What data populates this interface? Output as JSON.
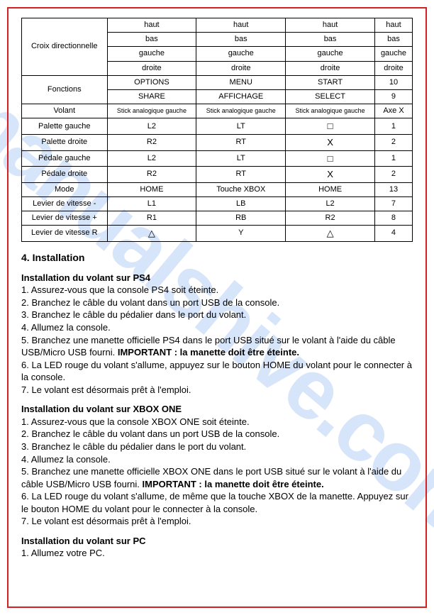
{
  "watermark": "manualshive.com",
  "table": {
    "row_labels": [
      "Croix directionnelle",
      "Fonctions",
      "Volant",
      "Palette gauche",
      "Palette droite",
      "Pédale gauche",
      "Pédale droite",
      "Mode",
      "Levier de vitesse -",
      "Levier de vitesse +",
      "Levier de vitesse R"
    ],
    "croix": {
      "r1": [
        "haut",
        "haut",
        "haut",
        "haut"
      ],
      "r2": [
        "bas",
        "bas",
        "bas",
        "bas"
      ],
      "r3": [
        "gauche",
        "gauche",
        "gauche",
        "gauche"
      ],
      "r4": [
        "droite",
        "droite",
        "droite",
        "droite"
      ]
    },
    "fonctions": {
      "r1": [
        "OPTIONS",
        "MENU",
        "START",
        "10"
      ],
      "r2": [
        "SHARE",
        "AFFICHAGE",
        "SELECT",
        "9"
      ]
    },
    "volant": [
      "Stick analogique gauche",
      "Stick analogique gauche",
      "Stick analogique gauche",
      "Axe X"
    ],
    "pal_g": [
      "L2",
      "LT",
      "□",
      "1"
    ],
    "pal_d": [
      "R2",
      "RT",
      "X",
      "2"
    ],
    "ped_g": [
      "L2",
      "LT",
      "□",
      "1"
    ],
    "ped_d": [
      "R2",
      "RT",
      "X",
      "2"
    ],
    "mode": [
      "HOME",
      "Touche XBOX",
      "HOME",
      "13"
    ],
    "lev_m": [
      "L1",
      "LB",
      "L2",
      "7"
    ],
    "lev_p": [
      "R1",
      "RB",
      "R2",
      "8"
    ],
    "lev_r": [
      "△",
      "Y",
      "△",
      "4"
    ]
  },
  "section_title": "4. Installation",
  "ps4": {
    "head": "Installation du volant sur PS4",
    "l1": "1. Assurez-vous que la console PS4 soit éteinte.",
    "l2": "2. Branchez le câble du volant dans un port USB de la console.",
    "l3": "3. Branchez le câble du pédalier dans le port du volant.",
    "l4": "4. Allumez la console.",
    "l5a": "5. Branchez une manette officielle PS4 dans le port USB situé sur le volant à l'aide du câble USB/Micro USB fourni. ",
    "l5b": "IMPORTANT : la manette doit être éteinte.",
    "l6": "6. La LED rouge du volant s'allume, appuyez sur le bouton HOME du volant pour le connecter à la console.",
    "l7": "7. Le volant est désormais prêt à l'emploi."
  },
  "xbox": {
    "head": "Installation du volant sur XBOX ONE",
    "l1": "1. Assurez-vous que la console XBOX ONE soit éteinte.",
    "l2": "2. Branchez le câble du volant dans un port USB de la console.",
    "l3": "3. Branchez le câble du pédalier dans le port du volant.",
    "l4": "4. Allumez la console.",
    "l5a": "5. Branchez une manette officielle XBOX ONE dans le port USB situé sur le volant à l'aide du câble USB/Micro USB fourni. ",
    "l5b": "IMPORTANT : la manette doit être éteinte.",
    "l6": "6. La LED rouge du volant s'allume, de même que la touche XBOX de la manette. Appuyez sur le bouton HOME du volant pour le connecter à la console.",
    "l7": "7. Le volant est désormais prêt à l'emploi."
  },
  "pc": {
    "head": "Installation du volant sur PC",
    "l1": "1. Allumez votre PC."
  }
}
